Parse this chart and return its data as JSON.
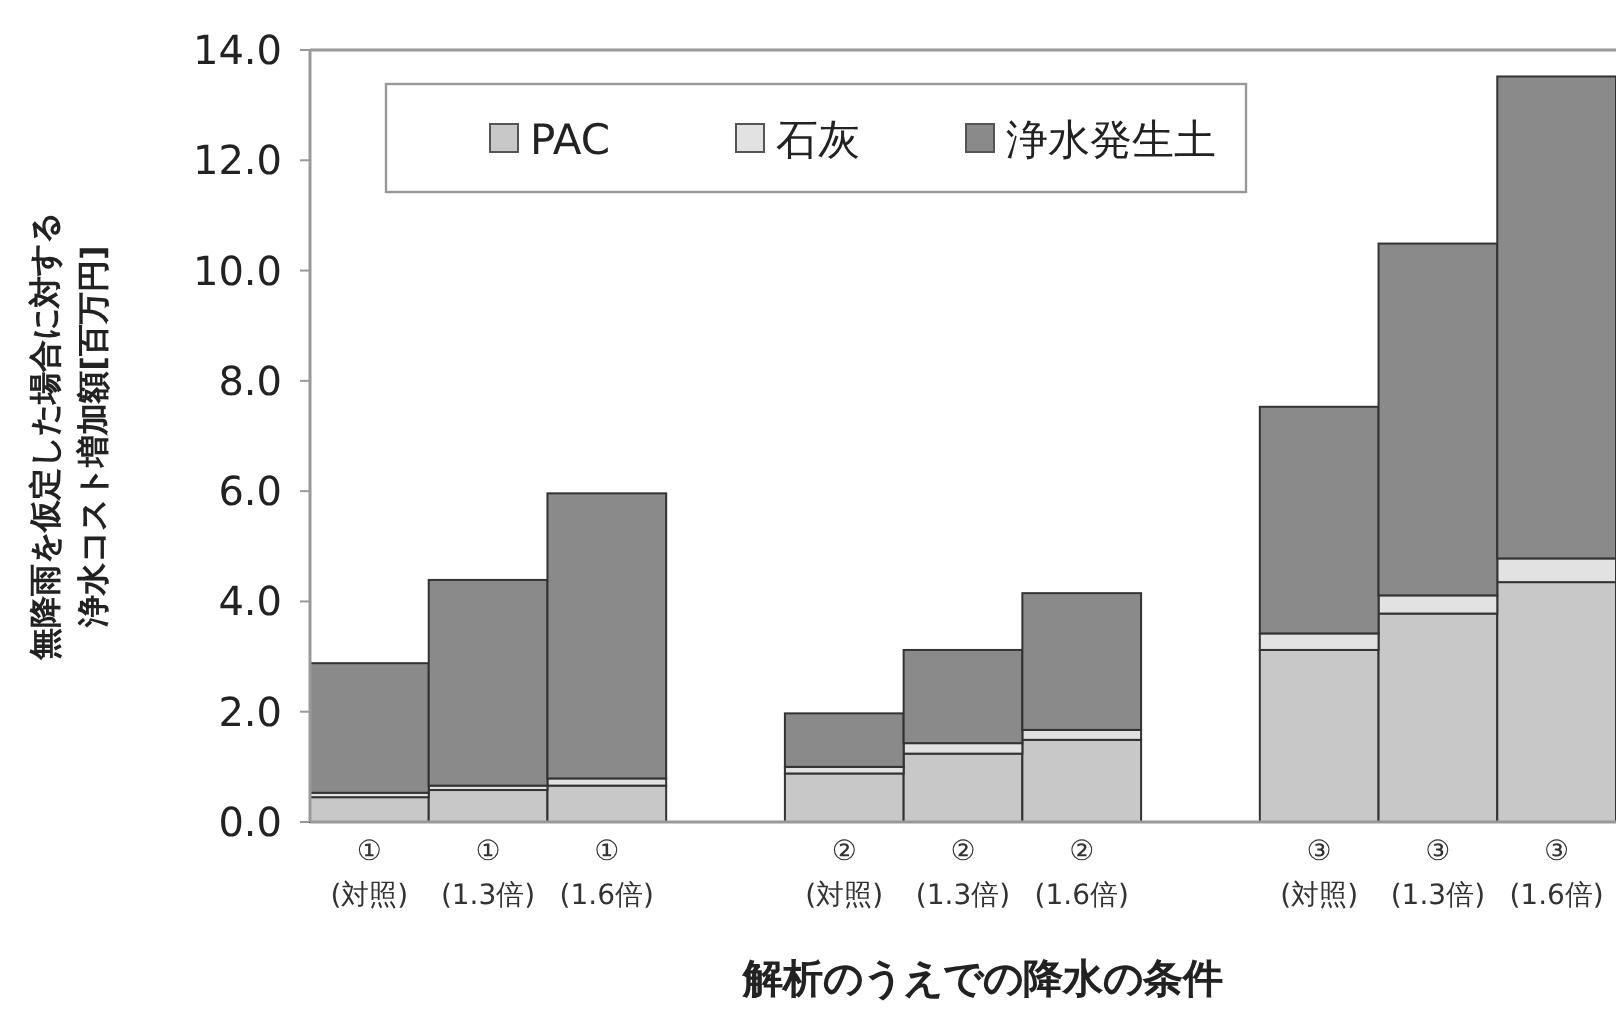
{
  "chart_data": {
    "type": "bar",
    "stacked": true,
    "xlabel": "解析のうえでの降水の条件",
    "ylabel": "無降雨を仮定した場合に対する浄水コスト増加額[百万円]",
    "categories": [
      "①\n(対照)",
      "①\n(1.3倍)",
      "①\n(1.6倍)",
      null,
      "②\n(対照)",
      "②\n(1.3倍)",
      "②\n(1.6倍)",
      null,
      "③\n(対照)",
      "③\n(1.3倍)",
      "③\n(1.6倍)"
    ],
    "series": [
      {
        "name": "PAC",
        "color": "#c8c8c8",
        "values": [
          0.45,
          0.58,
          0.66,
          null,
          0.88,
          1.24,
          1.49,
          null,
          3.12,
          3.78,
          4.35
        ]
      },
      {
        "name": "石灰",
        "color": "#e2e2e2",
        "values": [
          0.08,
          0.08,
          0.13,
          null,
          0.12,
          0.19,
          0.18,
          null,
          0.3,
          0.33,
          0.43
        ]
      },
      {
        "name": "浄水発生土",
        "color": "#8a8a8a",
        "values": [
          2.35,
          3.73,
          5.17,
          null,
          0.97,
          1.69,
          2.48,
          null,
          4.11,
          6.38,
          8.74
        ]
      }
    ],
    "ylim": [
      0,
      14
    ],
    "yticks": [
      {
        "value": 0,
        "label": "0.0"
      },
      {
        "value": 2,
        "label": "2.0"
      },
      {
        "value": 4,
        "label": "4.0"
      },
      {
        "value": 6,
        "label": "6.0"
      },
      {
        "value": 8,
        "label": "8.0"
      },
      {
        "value": 10,
        "label": "10.0"
      },
      {
        "value": 12,
        "label": "12.0"
      },
      {
        "value": 14,
        "label": "14.0"
      }
    ],
    "grid": false,
    "legend": "top"
  }
}
